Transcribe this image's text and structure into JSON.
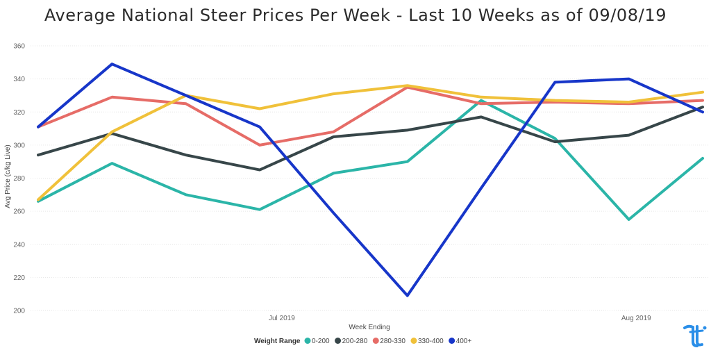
{
  "chart_data": {
    "type": "line",
    "title": "Average National Steer Prices Per Week - Last 10 Weeks as of 09/08/19",
    "xlabel": "Week Ending",
    "ylabel": "Avg Price (c/kg Live)",
    "ylim": [
      200,
      360
    ],
    "yticks": [
      200,
      220,
      240,
      260,
      280,
      300,
      320,
      340,
      360
    ],
    "x_tick_labels": [
      {
        "label": "Jul 2019",
        "at_week": 3.3
      },
      {
        "label": "Aug 2019",
        "at_week": 8.1
      }
    ],
    "n_weeks": 10,
    "grid": true,
    "legend_title": "Weight Range",
    "legend_position": "bottom",
    "series": [
      {
        "name": "0-200",
        "color": "#2bb5a8",
        "values": [
          266,
          289,
          270,
          261,
          283,
          290,
          327,
          304,
          255,
          292
        ]
      },
      {
        "name": "200-280",
        "color": "#374649",
        "values": [
          294,
          307,
          294,
          285,
          305,
          309,
          317,
          302,
          306,
          323
        ]
      },
      {
        "name": "280-330",
        "color": "#e66c67",
        "values": [
          311,
          329,
          325,
          300,
          308,
          335,
          325,
          326,
          325,
          327
        ]
      },
      {
        "name": "330-400",
        "color": "#f0c13a",
        "values": [
          267,
          308,
          330,
          322,
          331,
          336,
          329,
          327,
          326,
          332
        ]
      },
      {
        "name": "400+",
        "color": "#1736c9",
        "values": [
          311,
          349,
          330,
          311,
          259,
          209,
          274,
          338,
          340,
          320
        ]
      }
    ]
  },
  "logo": {
    "icon": "tt-logo-icon",
    "color": "#2a8ee8"
  }
}
